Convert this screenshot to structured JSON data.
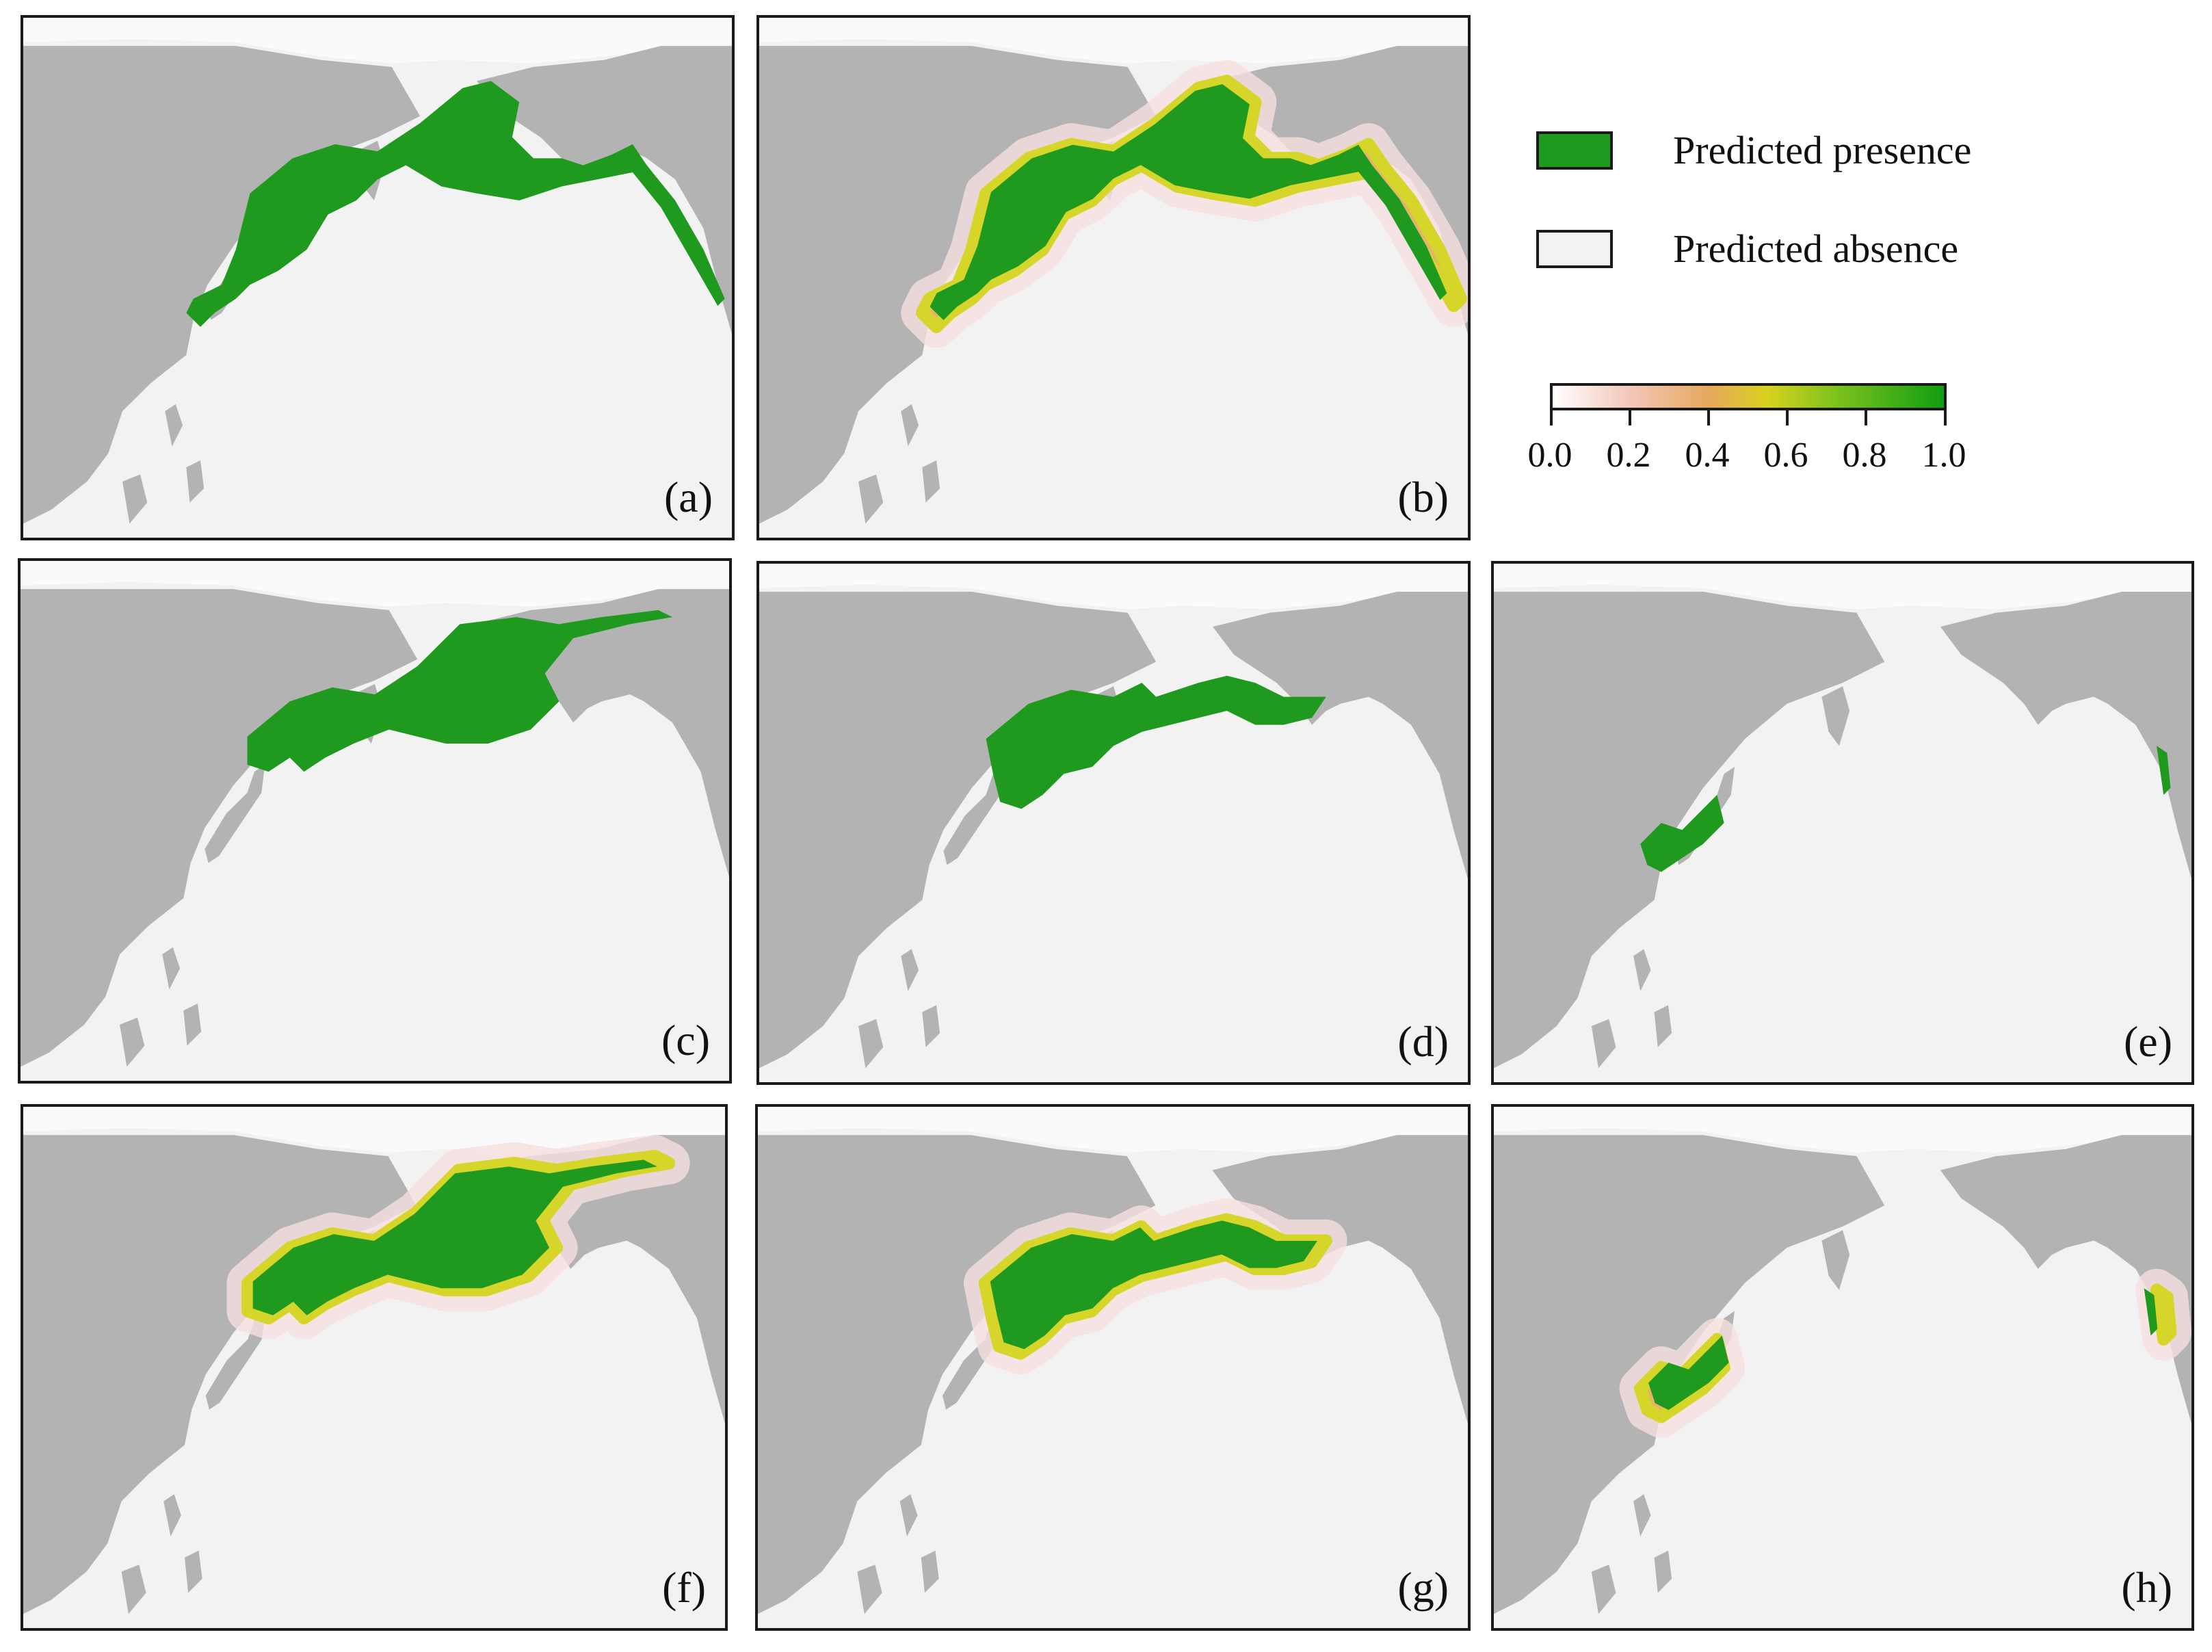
{
  "colors": {
    "land": "#b3b3b3",
    "ocean": "#f2f2f2",
    "presence": "#1f9a1f",
    "presence_dark": "#0e8a0e",
    "absence": "#f2f2f2",
    "prob_low": "#f6e0e0",
    "prob_mid": "#e6b36e",
    "prob_high": "#d6d62a"
  },
  "legend": {
    "presence_label": "Predicted presence",
    "absence_label": "Predicted absence",
    "colorbar_ticks": [
      "0.0",
      "0.2",
      "0.4",
      "0.6",
      "0.8",
      "1.0"
    ]
  },
  "panels": [
    {
      "label": "(a)",
      "mode": "binary",
      "pattern": "wide"
    },
    {
      "label": "(b)",
      "mode": "prob",
      "pattern": "wide"
    },
    {
      "label": "(c)",
      "mode": "binary",
      "pattern": "north"
    },
    {
      "label": "(d)",
      "mode": "binary",
      "pattern": "mid"
    },
    {
      "label": "(e)",
      "mode": "binary",
      "pattern": "south"
    },
    {
      "label": "(f)",
      "mode": "prob",
      "pattern": "north"
    },
    {
      "label": "(g)",
      "mode": "prob",
      "pattern": "mid"
    },
    {
      "label": "(h)",
      "mode": "prob",
      "pattern": "south"
    }
  ]
}
